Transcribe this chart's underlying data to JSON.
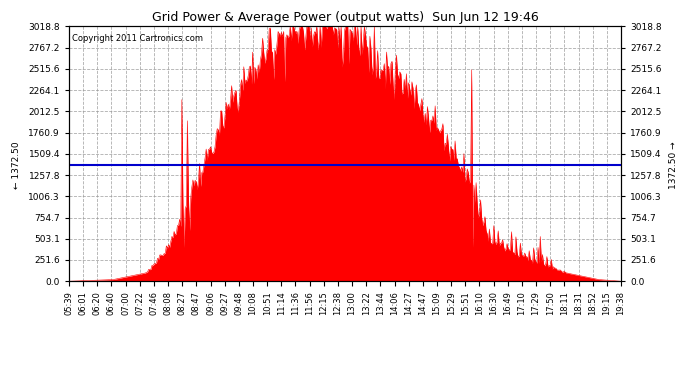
{
  "title": "Grid Power & Average Power (output watts)  Sun Jun 12 19:46",
  "copyright": "Copyright 2011 Cartronics.com",
  "average_line_value": 1372.5,
  "ymax": 3018.8,
  "ymin": 0.0,
  "yticks": [
    0.0,
    251.6,
    503.1,
    754.7,
    1006.3,
    1257.8,
    1509.4,
    1760.9,
    2012.5,
    2264.1,
    2515.6,
    2767.2,
    3018.8
  ],
  "background_color": "#ffffff",
  "plot_bg_color": "#ffffff",
  "fill_color": "#ff0000",
  "line_color": "#ff0000",
  "avg_line_color": "#0000cc",
  "grid_color": "#999999",
  "title_color": "#000000",
  "xtick_labels": [
    "05:39",
    "06:01",
    "06:20",
    "06:40",
    "07:00",
    "07:22",
    "07:46",
    "08:08",
    "08:27",
    "08:47",
    "09:06",
    "09:27",
    "09:48",
    "10:08",
    "10:51",
    "11:14",
    "11:36",
    "11:56",
    "12:15",
    "12:38",
    "13:00",
    "13:22",
    "13:44",
    "14:06",
    "14:27",
    "14:47",
    "15:09",
    "15:29",
    "15:51",
    "16:10",
    "16:30",
    "16:49",
    "17:10",
    "17:29",
    "17:50",
    "18:11",
    "18:31",
    "18:52",
    "19:15",
    "19:38"
  ]
}
